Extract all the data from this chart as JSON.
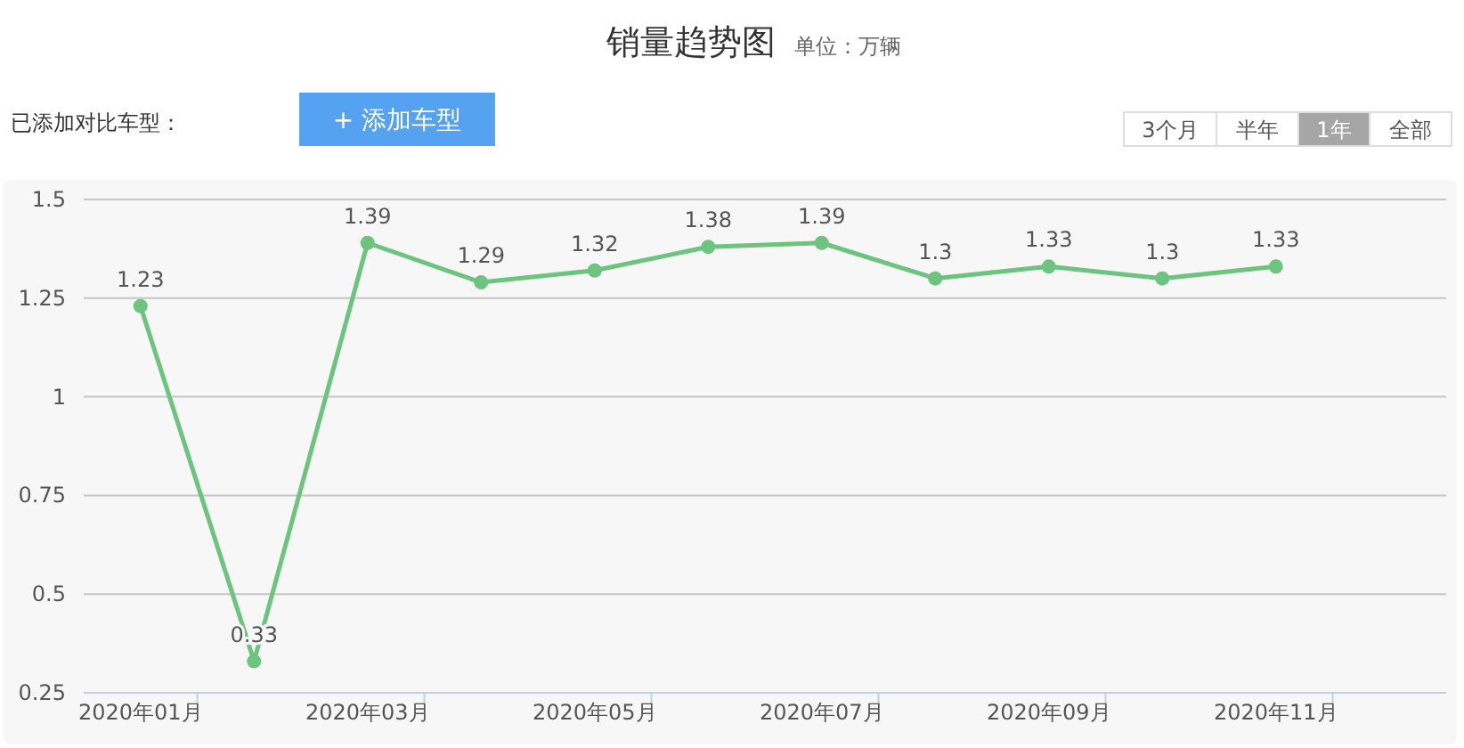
{
  "chart_data": {
    "type": "line",
    "title": "销量趋势图",
    "subtitle": "单位：万辆",
    "annotations": [
      "已添加对比车型：",
      "+ 添加车型",
      "3个月",
      "半年",
      "1年",
      "全部"
    ],
    "categories": [
      "2020年01月",
      null,
      "2020年03月",
      null,
      "2020年05月",
      null,
      "2020年07月",
      null,
      "2020年09月",
      null,
      "2020年11月",
      null
    ],
    "series": [
      {
        "color": "#6cc47e",
        "values": [
          1.23,
          0.33,
          1.39,
          1.29,
          1.32,
          1.38,
          1.39,
          1.3,
          1.33,
          1.3,
          1.33,
          null
        ]
      }
    ],
    "ylim": [
      0.25,
      1.5
    ],
    "yticks": [
      0.25,
      0.5,
      0.75,
      1,
      1.25,
      1.5
    ],
    "grid": "y",
    "marker": "circle",
    "line_style": "solid",
    "data_labels": true
  }
}
